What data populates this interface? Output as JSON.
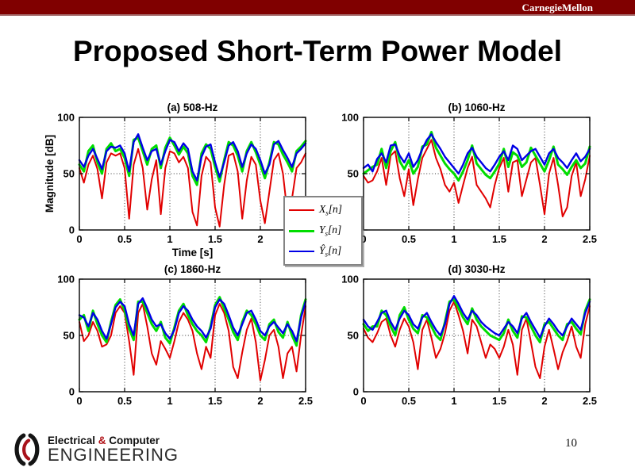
{
  "banner": {
    "brand": "CarnegieMellon",
    "color": "#800000"
  },
  "slide": {
    "title": "Proposed Short-Term Power Model",
    "page_number": "10"
  },
  "footer_logo": {
    "line1_pre": "Electrical ",
    "amp": "&",
    "line1_post": " Computer",
    "line2": "ENGINEERING",
    "accent_color": "#b01116"
  },
  "legend": {
    "items": [
      {
        "sym": "X",
        "sub": "s",
        "arg": "[n]",
        "color": "#e10000",
        "width": 2
      },
      {
        "sym": "Y",
        "sub": "s",
        "arg": "[n]",
        "color": "#00dd00",
        "width": 3
      },
      {
        "sym": "Ŷ",
        "sub": "s",
        "arg": "[n]",
        "color": "#0000e6",
        "width": 2.4
      }
    ]
  },
  "chart_data": [
    {
      "type": "line",
      "title": "(a) 508-Hz",
      "xlabel": "Time [s]",
      "ylabel": "Magnitude [dB]",
      "xlim": [
        0,
        2.5
      ],
      "ylim": [
        0,
        100
      ],
      "xticks": [
        0,
        0.5,
        1,
        1.5,
        2,
        2.5
      ],
      "xtick_labels": [
        "0",
        "0.5",
        "1",
        "1.5",
        "2",
        "2.5"
      ],
      "yticks": [
        0,
        50,
        100
      ],
      "ytick_labels": [
        "0",
        "50",
        "100"
      ],
      "grid": true,
      "x_start": 0,
      "x_step": 0.05,
      "series": [
        {
          "name": "Xs[n]",
          "color": "#e10000",
          "width": 2,
          "values": [
            55,
            42,
            58,
            66,
            54,
            28,
            60,
            68,
            66,
            68,
            55,
            10,
            58,
            72,
            55,
            18,
            45,
            62,
            14,
            55,
            70,
            68,
            60,
            65,
            55,
            16,
            4,
            48,
            65,
            60,
            20,
            3,
            40,
            66,
            68,
            52,
            10,
            44,
            65,
            58,
            26,
            6,
            34,
            62,
            68,
            50,
            14,
            28,
            55,
            60,
            68
          ]
        },
        {
          "name": "Ys[n]",
          "color": "#00dd00",
          "width": 3,
          "values": [
            58,
            52,
            70,
            75,
            60,
            50,
            72,
            77,
            70,
            72,
            64,
            48,
            80,
            82,
            70,
            58,
            72,
            75,
            55,
            73,
            82,
            75,
            67,
            74,
            68,
            48,
            40,
            68,
            76,
            72,
            56,
            43,
            62,
            78,
            75,
            66,
            52,
            70,
            78,
            69,
            58,
            46,
            60,
            78,
            76,
            67,
            60,
            52,
            70,
            74,
            79
          ]
        },
        {
          "name": "Ŷs[n]",
          "color": "#0000e6",
          "width": 2.4,
          "values": [
            62,
            56,
            66,
            72,
            63,
            54,
            70,
            74,
            73,
            75,
            68,
            52,
            78,
            85,
            73,
            62,
            70,
            72,
            58,
            70,
            80,
            78,
            70,
            77,
            72,
            52,
            44,
            65,
            74,
            76,
            60,
            47,
            60,
            75,
            78,
            70,
            56,
            68,
            76,
            72,
            62,
            50,
            58,
            76,
            79,
            71,
            64,
            56,
            68,
            72,
            77
          ]
        }
      ]
    },
    {
      "type": "line",
      "title": "(b) 1060-Hz",
      "xlabel": "",
      "ylabel": "",
      "xlim": [
        0,
        2.5
      ],
      "ylim": [
        0,
        100
      ],
      "xticks": [
        0,
        0.5,
        1,
        1.5,
        2,
        2.5
      ],
      "xtick_labels": [
        "0",
        "0.5",
        "1",
        "1.5",
        "2",
        "2.5"
      ],
      "yticks": [
        0,
        50,
        100
      ],
      "ytick_labels": [
        "0",
        "50",
        "100"
      ],
      "grid": true,
      "x_start": 0,
      "x_step": 0.05,
      "series": [
        {
          "name": "Xs[n]",
          "color": "#e10000",
          "width": 2,
          "values": [
            48,
            42,
            44,
            52,
            64,
            40,
            66,
            70,
            46,
            30,
            54,
            22,
            45,
            64,
            72,
            80,
            64,
            54,
            40,
            34,
            42,
            24,
            40,
            55,
            65,
            40,
            34,
            28,
            20,
            40,
            55,
            64,
            34,
            60,
            62,
            30,
            45,
            60,
            64,
            40,
            14,
            50,
            64,
            40,
            12,
            20,
            48,
            60,
            30,
            45,
            66
          ]
        },
        {
          "name": "Ys[n]",
          "color": "#00dd00",
          "width": 3,
          "values": [
            50,
            53,
            56,
            58,
            72,
            55,
            70,
            78,
            61,
            54,
            62,
            50,
            56,
            74,
            76,
            87,
            73,
            66,
            59,
            54,
            50,
            44,
            52,
            62,
            75,
            59,
            54,
            49,
            46,
            52,
            59,
            72,
            56,
            69,
            66,
            56,
            60,
            73,
            66,
            59,
            52,
            62,
            74,
            58,
            54,
            49,
            56,
            62,
            55,
            59,
            74
          ]
        },
        {
          "name": "Ŷs[n]",
          "color": "#0000e6",
          "width": 2.4,
          "values": [
            55,
            58,
            52,
            63,
            68,
            60,
            75,
            76,
            66,
            60,
            68,
            56,
            62,
            72,
            80,
            85,
            78,
            72,
            65,
            60,
            55,
            50,
            58,
            68,
            73,
            65,
            60,
            55,
            52,
            58,
            65,
            70,
            62,
            75,
            72,
            62,
            66,
            70,
            72,
            65,
            58,
            68,
            72,
            64,
            60,
            55,
            62,
            68,
            61,
            65,
            72
          ]
        }
      ]
    },
    {
      "type": "line",
      "title": "(c) 1860-Hz",
      "xlabel": "",
      "ylabel": "",
      "xlim": [
        0,
        2.5
      ],
      "ylim": [
        0,
        100
      ],
      "xticks": [
        0,
        0.5,
        1,
        1.5,
        2,
        2.5
      ],
      "xtick_labels": [
        "0",
        "0.5",
        "1",
        "1.5",
        "2",
        "2.5"
      ],
      "yticks": [
        0,
        50,
        100
      ],
      "ytick_labels": [
        "0",
        "50",
        "100"
      ],
      "grid": true,
      "x_start": 0,
      "x_step": 0.05,
      "series": [
        {
          "name": "Xs[n]",
          "color": "#e10000",
          "width": 2,
          "values": [
            62,
            45,
            50,
            62,
            54,
            40,
            42,
            50,
            70,
            76,
            70,
            45,
            15,
            70,
            78,
            58,
            34,
            24,
            45,
            38,
            30,
            45,
            62,
            70,
            64,
            54,
            34,
            20,
            40,
            30,
            68,
            78,
            70,
            54,
            22,
            12,
            35,
            55,
            65,
            44,
            10,
            28,
            50,
            55,
            40,
            12,
            34,
            40,
            18,
            50,
            76
          ]
        },
        {
          "name": "Ys[n]",
          "color": "#00dd00",
          "width": 3,
          "values": [
            64,
            68,
            54,
            72,
            60,
            50,
            44,
            62,
            77,
            82,
            72,
            56,
            46,
            80,
            80,
            70,
            60,
            54,
            62,
            48,
            43,
            57,
            72,
            78,
            68,
            60,
            54,
            50,
            44,
            58,
            77,
            84,
            74,
            64,
            53,
            46,
            62,
            72,
            68,
            60,
            50,
            46,
            60,
            64,
            53,
            48,
            62,
            50,
            41,
            68,
            82
          ]
        },
        {
          "name": "Ŷs[n]",
          "color": "#0000e6",
          "width": 2.4,
          "values": [
            68,
            66,
            58,
            70,
            64,
            54,
            47,
            60,
            75,
            80,
            76,
            60,
            50,
            78,
            83,
            74,
            64,
            58,
            60,
            52,
            47,
            55,
            70,
            76,
            72,
            64,
            58,
            54,
            48,
            56,
            75,
            82,
            78,
            68,
            57,
            50,
            60,
            70,
            72,
            64,
            54,
            50,
            58,
            62,
            57,
            52,
            60,
            54,
            45,
            66,
            80
          ]
        }
      ]
    },
    {
      "type": "line",
      "title": "(d) 3030-Hz",
      "xlabel": "",
      "ylabel": "",
      "xlim": [
        0,
        2.5
      ],
      "ylim": [
        0,
        100
      ],
      "xticks": [
        0,
        0.5,
        1,
        1.5,
        2,
        2.5
      ],
      "xtick_labels": [
        "0",
        "0.5",
        "1",
        "1.5",
        "2",
        "2.5"
      ],
      "yticks": [
        0,
        50,
        100
      ],
      "ytick_labels": [
        "0",
        "50",
        "100"
      ],
      "grid": true,
      "x_start": 0,
      "x_step": 0.05,
      "series": [
        {
          "name": "Xs[n]",
          "color": "#e10000",
          "width": 2,
          "values": [
            56,
            48,
            44,
            52,
            62,
            65,
            50,
            40,
            55,
            65,
            58,
            44,
            20,
            55,
            64,
            48,
            30,
            38,
            52,
            72,
            80,
            68,
            54,
            34,
            64,
            58,
            44,
            30,
            42,
            38,
            30,
            40,
            55,
            42,
            15,
            55,
            65,
            44,
            22,
            12,
            40,
            55,
            38,
            20,
            35,
            45,
            58,
            40,
            30,
            60,
            76
          ]
        },
        {
          "name": "Ys[n]",
          "color": "#00dd00",
          "width": 3,
          "values": [
            60,
            54,
            58,
            58,
            72,
            68,
            58,
            50,
            68,
            75,
            64,
            56,
            52,
            68,
            66,
            58,
            50,
            46,
            62,
            80,
            82,
            74,
            66,
            60,
            74,
            64,
            58,
            54,
            50,
            48,
            46,
            52,
            64,
            54,
            48,
            67,
            66,
            58,
            50,
            44,
            60,
            62,
            56,
            50,
            46,
            60,
            62,
            56,
            51,
            72,
            82
          ]
        },
        {
          "name": "Ŷs[n]",
          "color": "#0000e6",
          "width": 2.4,
          "values": [
            64,
            58,
            55,
            62,
            70,
            72,
            62,
            55,
            65,
            72,
            68,
            60,
            56,
            66,
            70,
            62,
            55,
            50,
            60,
            78,
            85,
            78,
            70,
            64,
            72,
            68,
            62,
            58,
            55,
            52,
            50,
            56,
            62,
            58,
            52,
            65,
            70,
            62,
            55,
            48,
            58,
            65,
            60,
            54,
            50,
            58,
            65,
            60,
            55,
            70,
            80
          ]
        }
      ]
    }
  ]
}
